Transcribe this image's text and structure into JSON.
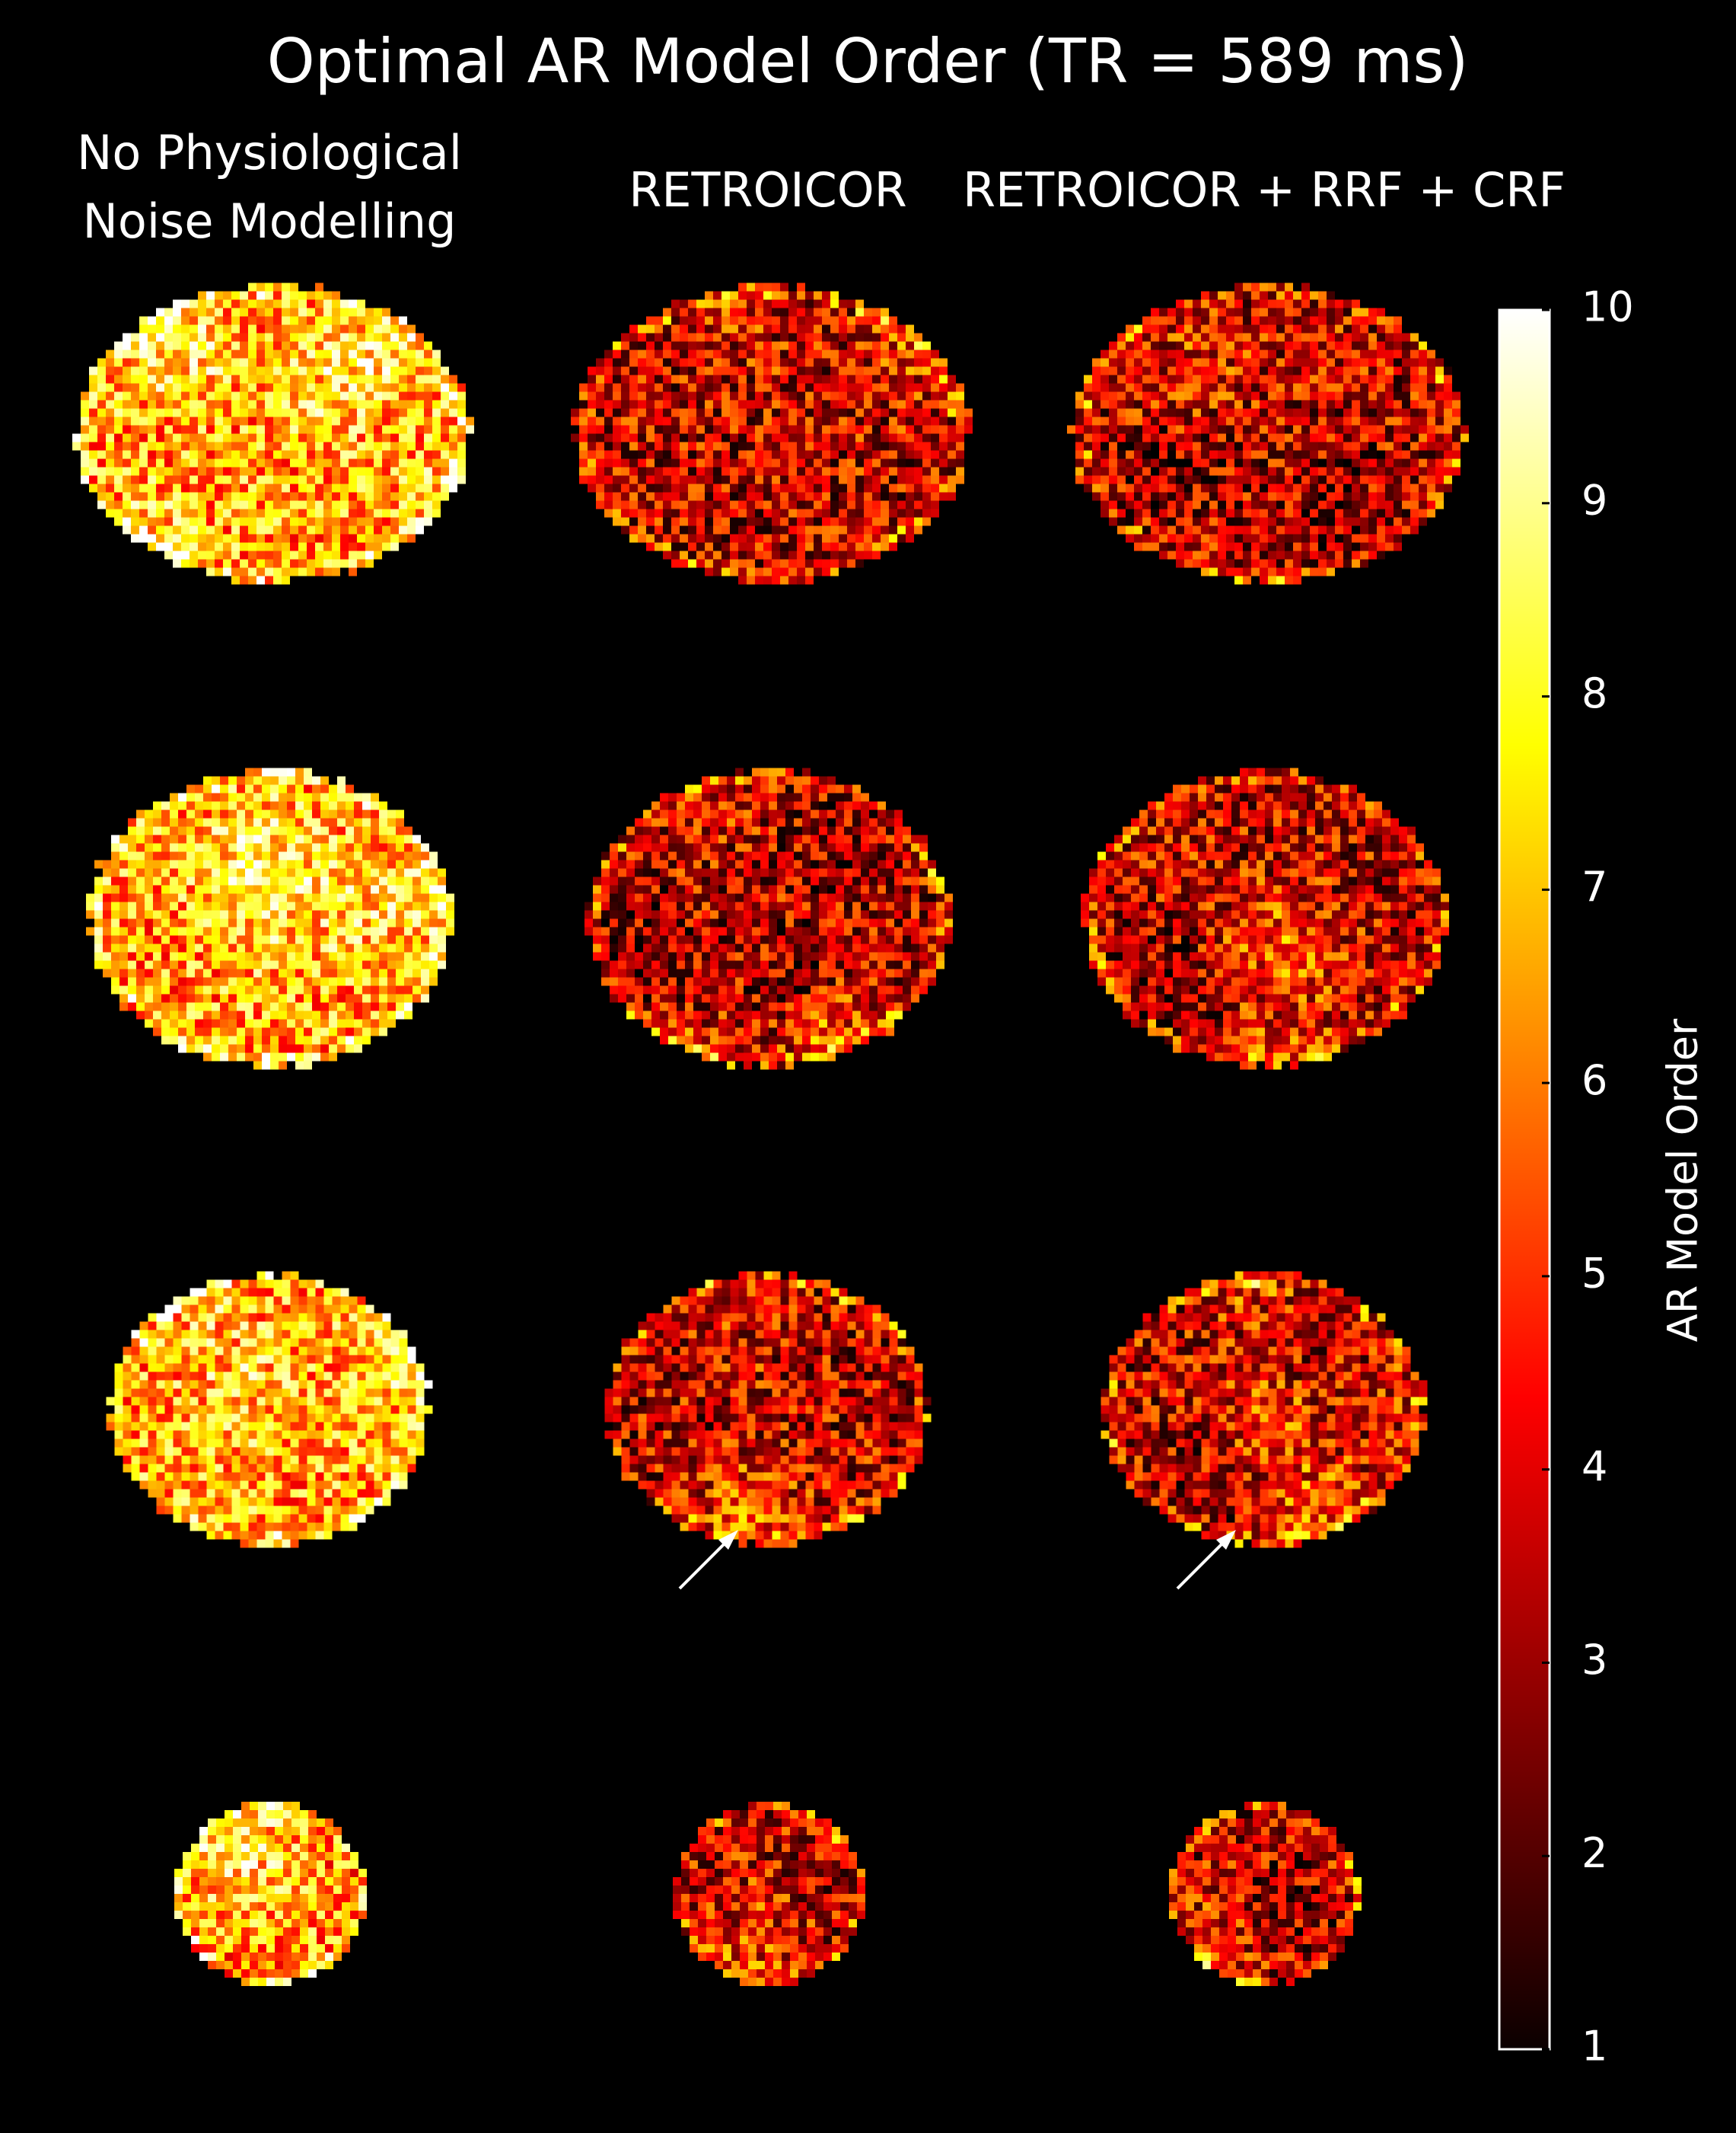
{
  "title": "Optimal AR Model Order (TR = 589 ms)",
  "columns": [
    {
      "lines": [
        "No Physiological",
        "Noise Modelling"
      ]
    },
    {
      "lines": [
        "RETROICOR"
      ]
    },
    {
      "lines": [
        "RETROICOR + RRF + CRF"
      ]
    }
  ],
  "colorbar": {
    "label": "AR Model Order",
    "lim": [
      1,
      10
    ],
    "ticks": [
      1,
      2,
      3,
      4,
      5,
      6,
      7,
      8,
      9,
      10
    ]
  }
}
